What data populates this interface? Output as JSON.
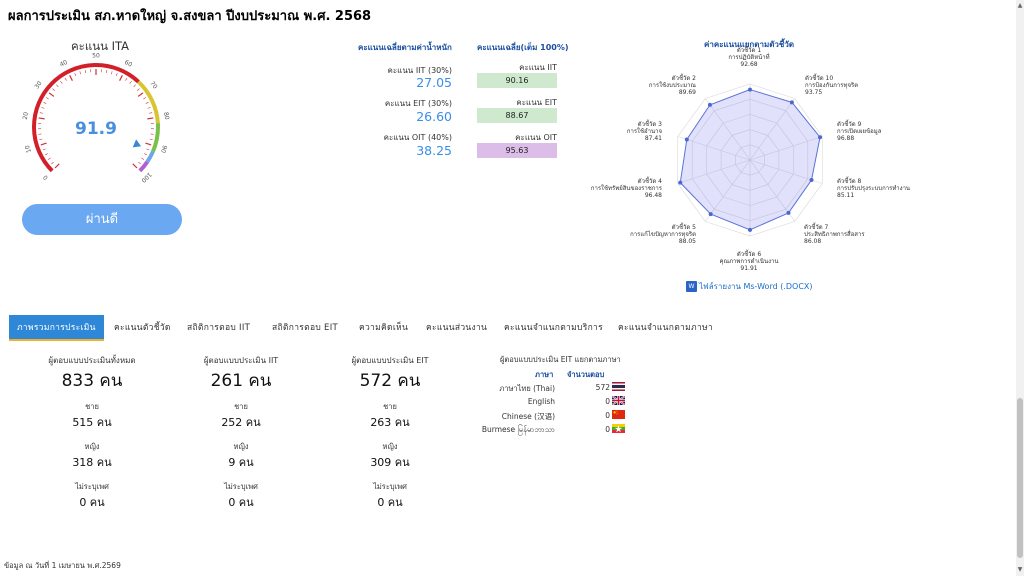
{
  "title": "ผลการประเมิน สภ.หาดใหญ่ จ.สงขลา ปีงบประมาณ พ.ศ. 2568",
  "gauge": {
    "title": "คะแนน ITA",
    "value": "91.9",
    "level": 91.9,
    "ticks": [
      "0",
      "10",
      "20",
      "30",
      "40",
      "50",
      "60",
      "70",
      "80",
      "90",
      "100"
    ],
    "result": "ผ่านดี"
  },
  "weighted": {
    "header": "คะแนนเฉลี่ยตามค่าน้ำหนัก",
    "items": [
      {
        "label": "คะแนน IIT (30%)",
        "value": "27.05"
      },
      {
        "label": "คะแนน EIT (30%)",
        "value": "26.60"
      },
      {
        "label": "คะแนน OIT (40%)",
        "value": "38.25"
      }
    ]
  },
  "average": {
    "header": "คะแนนเฉลี่ย(เต็ม 100%)",
    "items": [
      {
        "label": "คะแนน IIT",
        "value": "90.16",
        "color": "#cfe9cf"
      },
      {
        "label": "คะแนน EIT",
        "value": "88.67",
        "color": "#cfe9cf"
      },
      {
        "label": "คะแนน OIT",
        "value": "95.63",
        "color": "#dcbde8"
      }
    ]
  },
  "radar": {
    "title": "ค่าคะแนนแยกตามตัวชี้วัด",
    "indicators": [
      {
        "name": "ตัวชี้วัด 1",
        "desc": "การปฏิบัติหน้าที่",
        "value": "92.68",
        "v": 92.68
      },
      {
        "name": "ตัวชี้วัด 10",
        "desc": "การป้องกันการทุจริต",
        "value": "93.75",
        "v": 93.75
      },
      {
        "name": "ตัวชี้วัด 9",
        "desc": "การเปิดเผยข้อมูล",
        "value": "96.88",
        "v": 96.88
      },
      {
        "name": "ตัวชี้วัด 8",
        "desc": "การปรับปรุงระบบการทำงาน",
        "value": "85.11",
        "v": 85.11
      },
      {
        "name": "ตัวชี้วัด 7",
        "desc": "ประสิทธิภาพการสื่อสาร",
        "value": "86.08",
        "v": 86.08
      },
      {
        "name": "ตัวชี้วัด 6",
        "desc": "คุณภาพการดำเนินงาน",
        "value": "91.91",
        "v": 91.91
      },
      {
        "name": "ตัวชี้วัด 5",
        "desc": "การแก้ไขปัญหาการทุจริต",
        "value": "88.05",
        "v": 88.05
      },
      {
        "name": "ตัวชี้วัด 4",
        "desc": "การใช้ทรัพย์สินของราชการ",
        "value": "96.48",
        "v": 96.48
      },
      {
        "name": "ตัวชี้วัด 3",
        "desc": "การใช้อำนาจ",
        "value": "87.41",
        "v": 87.41
      },
      {
        "name": "ตัวชี้วัด 2",
        "desc": "การใช้งบประมาณ",
        "value": "89.69",
        "v": 89.69
      }
    ],
    "download_label": "ไฟล์รายงาน Ms-Word (.DOCX)",
    "word_icon_text": "W"
  },
  "tabs": [
    "ภาพรวมการประเมิน",
    "คะแนนตัวชี้วัด",
    "สถิติการตอบ IIT",
    "สถิติการตอบ EIT",
    "ความคิดเห็น",
    "คะแนนส่วนงาน",
    "คะแนนจำแนกตามบริการ",
    "คะแนนจำแนกตามภาษา"
  ],
  "stats": [
    {
      "header": "ผู้ตอบแบบประเมินทั้งหมด",
      "total": "833 คน",
      "male_label": "ชาย",
      "male": "515 คน",
      "female_label": "หญิง",
      "female": "318 คน",
      "unknown_label": "ไม่ระบุเพศ",
      "unknown": "0 คน"
    },
    {
      "header": "ผู้ตอบแบบประเมิน IIT",
      "total": "261 คน",
      "male_label": "ชาย",
      "male": "252 คน",
      "female_label": "หญิง",
      "female": "9 คน",
      "unknown_label": "ไม่ระบุเพศ",
      "unknown": "0 คน"
    },
    {
      "header": "ผู้ตอบแบบประเมิน EIT",
      "total": "572 คน",
      "male_label": "ชาย",
      "male": "263 คน",
      "female_label": "หญิง",
      "female": "309 คน",
      "unknown_label": "ไม่ระบุเพศ",
      "unknown": "0 คน"
    }
  ],
  "languages": {
    "header": "ผู้ตอบแบบประเมิน EIT แยกตามภาษา",
    "col_lang": "ภาษา",
    "col_count": "จำนวนตอบ",
    "rows": [
      {
        "name": "ภาษาไทย (Thai)",
        "count": "572",
        "flag": "th-flag-icon"
      },
      {
        "name": "English",
        "count": "0",
        "flag": "uk-flag-icon"
      },
      {
        "name": "Chinese (汉语)",
        "count": "0",
        "flag": "cn-flag-icon"
      },
      {
        "name": "Burmese မြန်မာဘာသာ",
        "count": "0",
        "flag": "mm-flag-icon"
      }
    ]
  },
  "footer": "ข้อมูล ณ วันที่ 1 เมษายน พ.ศ.2569",
  "colors": {
    "accent": "#2f87d8",
    "value_blue": "#3a8ee6",
    "pass_button": "#6aa8f1"
  }
}
